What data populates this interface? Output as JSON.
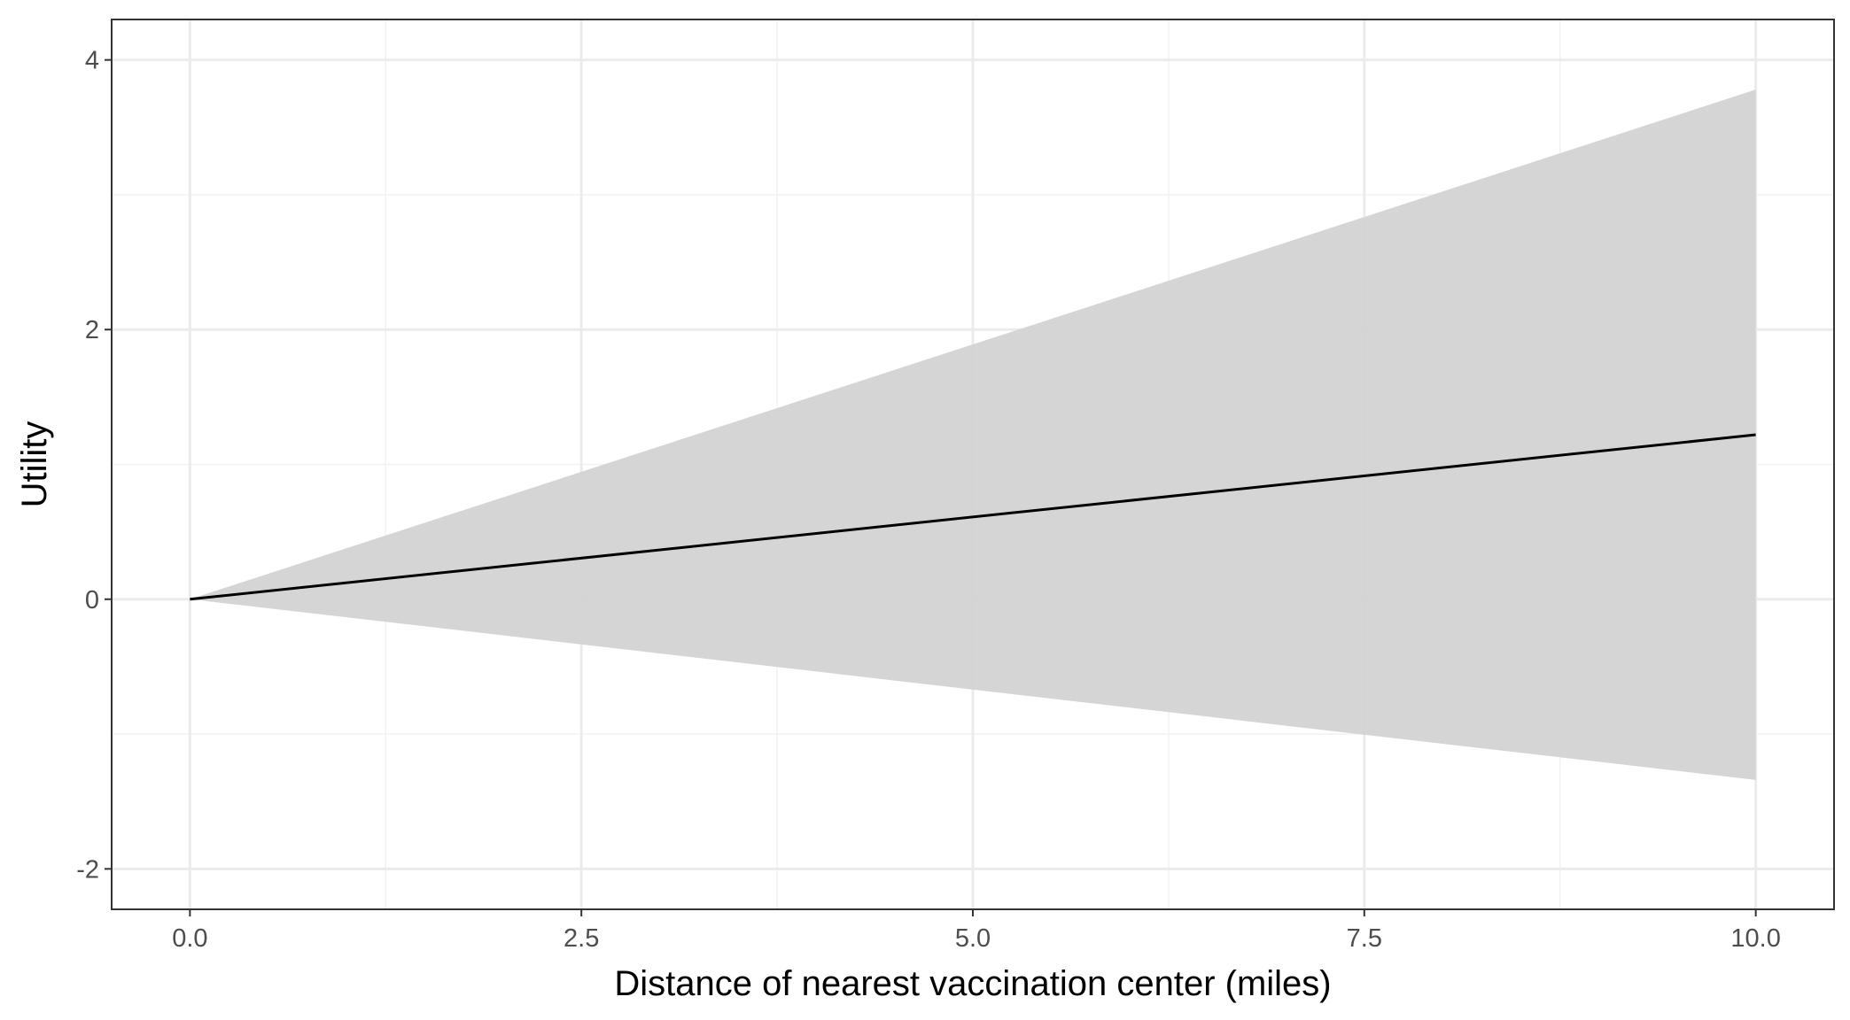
{
  "chart_data": {
    "type": "line",
    "title": "",
    "xlabel": "Distance of nearest vaccination center (miles)",
    "ylabel": "Utility",
    "xlim": [
      -0.5,
      10.5
    ],
    "ylim": [
      -2.3,
      4.3
    ],
    "x_ticks": [
      0.0,
      2.5,
      5.0,
      7.5,
      10.0
    ],
    "x_tick_labels": [
      "0.0",
      "2.5",
      "5.0",
      "7.5",
      "10.0"
    ],
    "y_ticks": [
      -2,
      0,
      2,
      4
    ],
    "y_tick_labels": [
      "-2",
      "0",
      "2",
      "4"
    ],
    "x_minor_ticks": [
      1.25,
      3.75,
      6.25,
      8.75
    ],
    "y_minor_ticks": [
      -1,
      1,
      3
    ],
    "grid": true,
    "legend": "none",
    "series": [
      {
        "x": [
          0,
          10
        ],
        "y": [
          0,
          1.22
        ],
        "lower": [
          0,
          -1.34
        ],
        "upper": [
          0,
          3.78
        ],
        "line_color": "#000000",
        "ribbon_color": "#d3d3d3"
      }
    ],
    "colors": {
      "background": "#ffffff",
      "panel_border": "#333333",
      "grid_major": "#ebebeb",
      "grid_minor": "#f2f2f2",
      "tick_mark": "#333333"
    }
  }
}
